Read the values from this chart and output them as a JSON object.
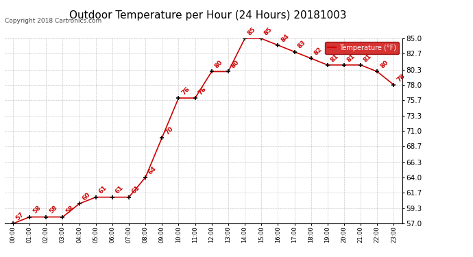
{
  "title": "Outdoor Temperature per Hour (24 Hours) 20181003",
  "copyright": "Copyright 2018 Cartronics.com",
  "legend_label": "Temperature (°F)",
  "hours": [
    0,
    1,
    2,
    3,
    4,
    5,
    6,
    7,
    8,
    9,
    10,
    11,
    12,
    13,
    14,
    15,
    16,
    17,
    18,
    19,
    20,
    21,
    22,
    23
  ],
  "x_labels": [
    "00:00",
    "01:00",
    "02:00",
    "03:00",
    "04:00",
    "05:00",
    "06:00",
    "07:00",
    "08:00",
    "09:00",
    "10:00",
    "11:00",
    "12:00",
    "13:00",
    "14:00",
    "15:00",
    "16:00",
    "17:00",
    "18:00",
    "19:00",
    "20:00",
    "21:00",
    "22:00",
    "23:00"
  ],
  "temps": [
    57,
    58,
    58,
    58,
    60,
    61,
    61,
    61,
    64,
    70,
    76,
    76,
    80,
    80,
    85,
    85,
    84,
    83,
    82,
    81,
    81,
    81,
    80,
    78
  ],
  "ylim_min": 57.0,
  "ylim_max": 85.0,
  "yticks": [
    57.0,
    59.3,
    61.7,
    64.0,
    66.3,
    68.7,
    71.0,
    73.3,
    75.7,
    78.0,
    80.3,
    82.7,
    85.0
  ],
  "line_color": "#cc0000",
  "marker_color": "#000000",
  "annotation_color": "#cc0000",
  "background_color": "#ffffff",
  "grid_color": "#bbbbbb",
  "title_fontsize": 11,
  "annotation_fontsize": 6.5,
  "legend_bg": "#cc0000",
  "legend_fg": "#ffffff",
  "copyright_fontsize": 6.5
}
